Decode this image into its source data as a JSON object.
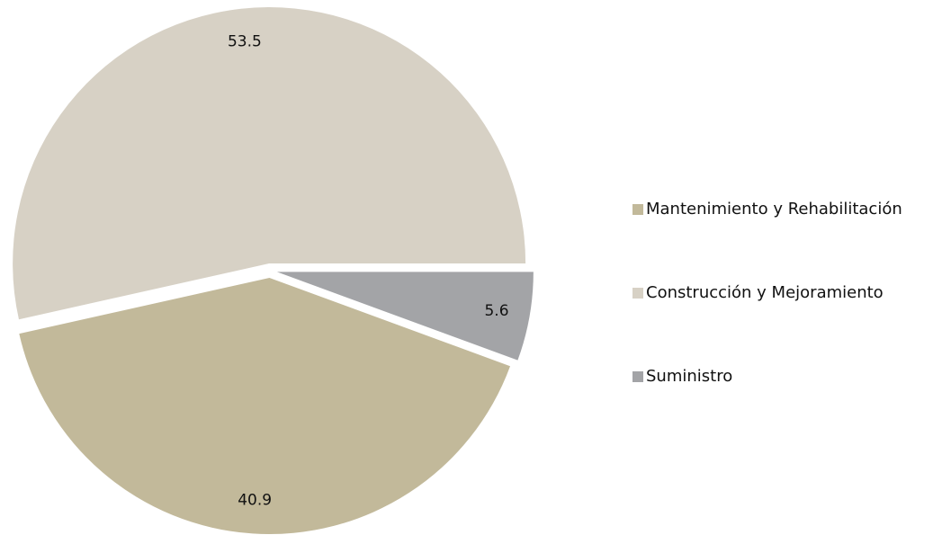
{
  "chart_data": {
    "type": "pie",
    "categories": [
      "Mantenimiento y Rehabilitación",
      "Construcción y Mejoramiento",
      "Suministro"
    ],
    "values": [
      40.9,
      53.5,
      5.6
    ],
    "colors": [
      "#c2b99a",
      "#d7d1c5",
      "#a3a4a7"
    ],
    "legend": "right"
  }
}
